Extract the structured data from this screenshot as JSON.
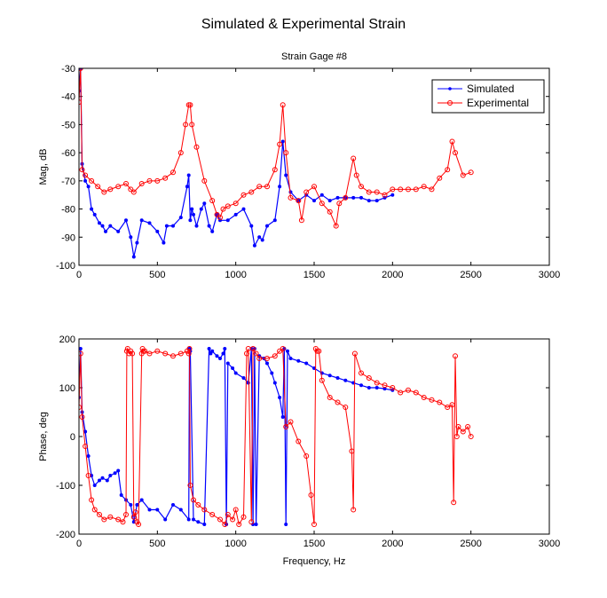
{
  "figure": {
    "title": "Simulated & Experimental Strain"
  },
  "legend": {
    "simulated": "Simulated",
    "experimental": "Experimental"
  },
  "colors": {
    "simulated": "#0000ff",
    "experimental": "#ff0000",
    "axes": "#000000"
  },
  "chart_data": [
    {
      "type": "line",
      "title": "Strain Gage #8",
      "xlabel": "",
      "ylabel": "Mag, dB",
      "xlim": [
        0,
        3000
      ],
      "ylim": [
        -100,
        -30
      ],
      "xticks": [
        0,
        500,
        1000,
        1500,
        2000,
        2500,
        3000
      ],
      "yticks": [
        -30,
        -40,
        -50,
        -60,
        -70,
        -80,
        -90,
        -100
      ],
      "legend_position": "top-right",
      "series": [
        {
          "name": "Simulated",
          "marker": "dot",
          "x": [
            0,
            10,
            20,
            40,
            60,
            80,
            100,
            130,
            150,
            170,
            200,
            250,
            300,
            330,
            350,
            370,
            400,
            450,
            500,
            540,
            560,
            600,
            650,
            690,
            700,
            710,
            720,
            730,
            750,
            780,
            800,
            830,
            850,
            880,
            900,
            950,
            1000,
            1050,
            1100,
            1120,
            1150,
            1170,
            1200,
            1250,
            1280,
            1300,
            1320,
            1350,
            1400,
            1450,
            1500,
            1550,
            1600,
            1650,
            1700,
            1750,
            1800,
            1850,
            1900,
            1950,
            2000
          ],
          "y": [
            -38,
            -30,
            -64,
            -70,
            -72,
            -80,
            -82,
            -85,
            -86,
            -88,
            -86,
            -88,
            -84,
            -90,
            -97,
            -92,
            -84,
            -85,
            -88,
            -92,
            -86,
            -86,
            -83,
            -72,
            -68,
            -84,
            -80,
            -82,
            -86,
            -80,
            -78,
            -86,
            -88,
            -82,
            -84,
            -84,
            -82,
            -80,
            -86,
            -93,
            -90,
            -91,
            -86,
            -84,
            -72,
            -56,
            -68,
            -74,
            -77,
            -75,
            -77,
            -75,
            -77,
            -76,
            -76,
            -76,
            -76,
            -77,
            -77,
            -76,
            -75
          ]
        },
        {
          "name": "Experimental",
          "marker": "circle",
          "x": [
            0,
            10,
            20,
            40,
            80,
            120,
            160,
            200,
            250,
            300,
            330,
            350,
            400,
            450,
            500,
            550,
            600,
            650,
            680,
            700,
            710,
            720,
            750,
            800,
            850,
            880,
            900,
            920,
            950,
            1000,
            1050,
            1100,
            1150,
            1200,
            1250,
            1280,
            1300,
            1320,
            1350,
            1400,
            1420,
            1450,
            1500,
            1550,
            1600,
            1640,
            1660,
            1700,
            1750,
            1770,
            1800,
            1850,
            1900,
            1950,
            2000,
            2050,
            2100,
            2150,
            2200,
            2250,
            2300,
            2350,
            2380,
            2400,
            2450,
            2500
          ],
          "y": [
            -42,
            -30,
            -66,
            -68,
            -70,
            -72,
            -74,
            -73,
            -72,
            -71,
            -73,
            -74,
            -71,
            -70,
            -70,
            -69,
            -67,
            -60,
            -50,
            -43,
            -43,
            -50,
            -58,
            -70,
            -77,
            -82,
            -83,
            -80,
            -79,
            -78,
            -75,
            -74,
            -72,
            -72,
            -66,
            -57,
            -43,
            -60,
            -76,
            -77,
            -84,
            -74,
            -72,
            -78,
            -81,
            -86,
            -78,
            -76,
            -62,
            -68,
            -72,
            -74,
            -74,
            -75,
            -73,
            -73,
            -73,
            -73,
            -72,
            -73,
            -69,
            -66,
            -56,
            -60,
            -68,
            -67
          ]
        }
      ]
    },
    {
      "type": "line",
      "title": "",
      "xlabel": "Frequency, Hz",
      "ylabel": "Phase, deg",
      "xlim": [
        0,
        3000
      ],
      "ylim": [
        -200,
        200
      ],
      "xticks": [
        0,
        500,
        1000,
        1500,
        2000,
        2500,
        3000
      ],
      "yticks": [
        200,
        100,
        0,
        -100,
        -200
      ],
      "series": [
        {
          "name": "Simulated",
          "marker": "dot",
          "x": [
            0,
            10,
            20,
            40,
            60,
            80,
            100,
            130,
            150,
            180,
            200,
            230,
            250,
            270,
            300,
            330,
            350,
            370,
            400,
            450,
            500,
            550,
            600,
            650,
            700,
            705,
            710,
            730,
            760,
            800,
            830,
            840,
            850,
            880,
            900,
            920,
            930,
            940,
            950,
            980,
            1000,
            1050,
            1080,
            1100,
            1110,
            1120,
            1130,
            1150,
            1180,
            1200,
            1230,
            1250,
            1280,
            1300,
            1310,
            1320,
            1330,
            1350,
            1400,
            1450,
            1500,
            1550,
            1600,
            1650,
            1700,
            1750,
            1800,
            1850,
            1900,
            1950,
            2000
          ],
          "y": [
            80,
            180,
            50,
            10,
            -40,
            -80,
            -100,
            -90,
            -85,
            -90,
            -80,
            -75,
            -70,
            -120,
            -130,
            -140,
            -175,
            -140,
            -130,
            -150,
            -150,
            -170,
            -140,
            -150,
            -170,
            180,
            175,
            -170,
            -175,
            -180,
            180,
            170,
            175,
            165,
            160,
            170,
            180,
            -180,
            150,
            140,
            130,
            120,
            110,
            180,
            -180,
            180,
            -180,
            165,
            160,
            150,
            130,
            110,
            80,
            40,
            180,
            -180,
            175,
            160,
            155,
            150,
            140,
            130,
            125,
            120,
            115,
            110,
            105,
            100,
            100,
            98,
            95
          ]
        },
        {
          "name": "Experimental",
          "marker": "circle",
          "x": [
            0,
            10,
            20,
            40,
            60,
            80,
            100,
            130,
            160,
            200,
            250,
            280,
            300,
            305,
            310,
            320,
            330,
            340,
            350,
            360,
            370,
            380,
            400,
            405,
            410,
            420,
            450,
            500,
            550,
            600,
            650,
            690,
            700,
            705,
            710,
            730,
            760,
            800,
            850,
            900,
            930,
            950,
            980,
            1000,
            1020,
            1050,
            1070,
            1080,
            1100,
            1110,
            1130,
            1150,
            1200,
            1250,
            1280,
            1300,
            1320,
            1350,
            1400,
            1450,
            1480,
            1500,
            1510,
            1520,
            1530,
            1550,
            1600,
            1650,
            1700,
            1740,
            1750,
            1760,
            1800,
            1850,
            1900,
            1950,
            2000,
            2050,
            2100,
            2150,
            2200,
            2250,
            2300,
            2350,
            2380,
            2390,
            2400,
            2410,
            2420,
            2450,
            2480,
            2500
          ],
          "y": [
            60,
            170,
            40,
            -20,
            -80,
            -130,
            -150,
            -160,
            -170,
            -165,
            -170,
            -175,
            -160,
            175,
            180,
            170,
            175,
            170,
            -165,
            -155,
            -175,
            -180,
            170,
            180,
            175,
            175,
            170,
            175,
            170,
            165,
            170,
            175,
            170,
            180,
            -100,
            -130,
            -140,
            -150,
            -160,
            -170,
            -180,
            -160,
            -170,
            -150,
            -180,
            -165,
            170,
            180,
            -175,
            180,
            170,
            160,
            160,
            165,
            175,
            180,
            20,
            30,
            -10,
            -40,
            -120,
            -180,
            180,
            175,
            175,
            115,
            80,
            70,
            60,
            -30,
            -150,
            170,
            130,
            120,
            110,
            105,
            100,
            90,
            95,
            90,
            80,
            75,
            70,
            60,
            65,
            -135,
            165,
            0,
            20,
            10,
            20,
            0
          ]
        }
      ]
    }
  ]
}
